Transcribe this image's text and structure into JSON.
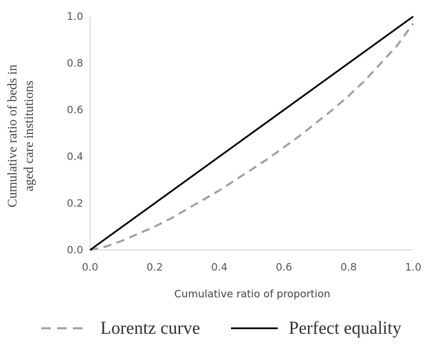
{
  "chart_data": {
    "type": "line",
    "xlabel": "Cumulative ratio of proportion",
    "ylabel_lines": [
      "Cumulative ratio of beds in",
      "aged care institutions"
    ],
    "xlim": [
      0,
      1
    ],
    "ylim": [
      0,
      1
    ],
    "x_ticks": [
      "0.0",
      "0.2",
      "0.4",
      "0.6",
      "0.8",
      "1.0"
    ],
    "y_ticks": [
      "0.0",
      "0.2",
      "0.4",
      "0.6",
      "0.8",
      "1.0"
    ],
    "grid": false,
    "legend_position": "bottom",
    "series": [
      {
        "name": "Lorentz curve",
        "style": "dashed",
        "color": "#a0a0a0",
        "x": [
          0.0,
          0.05,
          0.1,
          0.15,
          0.2,
          0.25,
          0.3,
          0.35,
          0.4,
          0.45,
          0.5,
          0.55,
          0.6,
          0.65,
          0.7,
          0.75,
          0.8,
          0.85,
          0.9,
          0.95,
          1.0
        ],
        "y": [
          0.0,
          0.015,
          0.04,
          0.07,
          0.1,
          0.135,
          0.175,
          0.215,
          0.255,
          0.3,
          0.345,
          0.39,
          0.44,
          0.49,
          0.545,
          0.6,
          0.66,
          0.725,
          0.8,
          0.875,
          0.97
        ]
      },
      {
        "name": "Perfect equality",
        "style": "solid",
        "color": "#000000",
        "x": [
          0,
          1
        ],
        "y": [
          0,
          1
        ]
      }
    ]
  }
}
